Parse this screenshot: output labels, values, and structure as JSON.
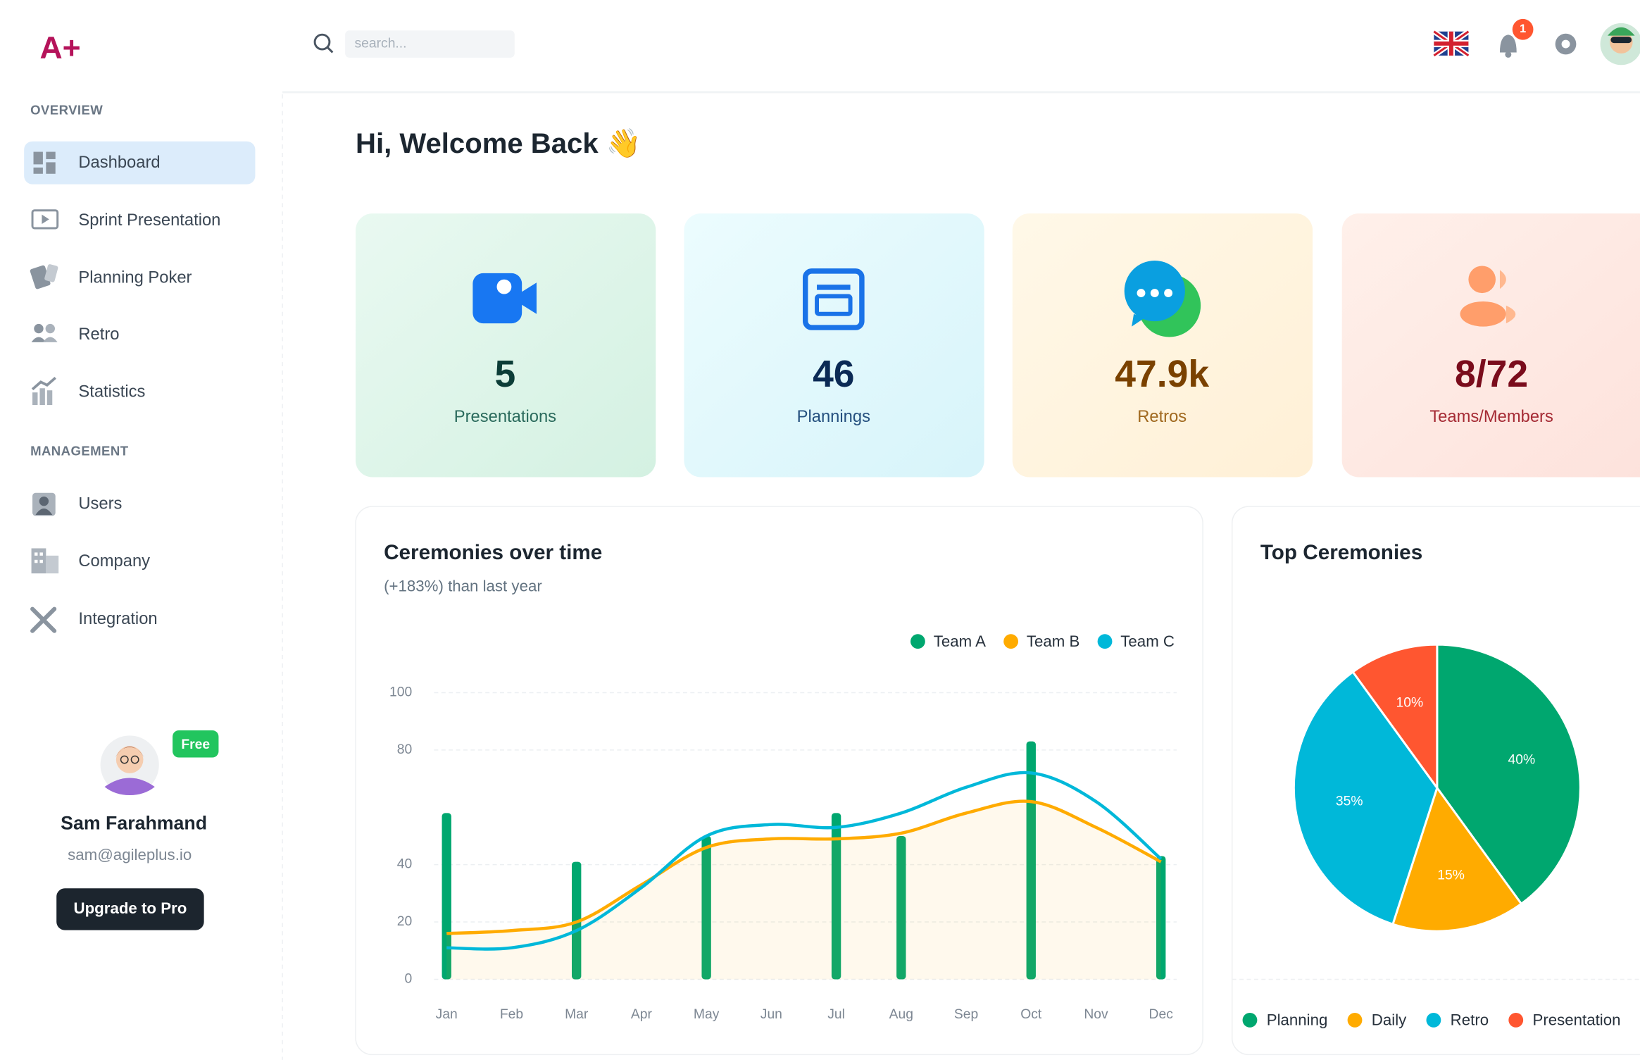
{
  "logo": "A+",
  "header": {
    "search_placeholder": "search...",
    "notification_count": "1"
  },
  "sidebar": {
    "sections": [
      {
        "title": "OVERVIEW",
        "items": [
          "Dashboard",
          "Sprint Presentation",
          "Planning Poker",
          "Retro",
          "Statistics"
        ]
      },
      {
        "title": "MANAGEMENT",
        "items": [
          "Users",
          "Company",
          "Integration"
        ]
      }
    ],
    "user": {
      "badge": "Free",
      "name": "Sam Farahmand",
      "email": "sam@agileplus.io",
      "button": "Upgrade to Pro"
    }
  },
  "greeting": "Hi, Welcome Back 👋",
  "cards": [
    {
      "value": "5",
      "label": "Presentations"
    },
    {
      "value": "46",
      "label": "Plannings"
    },
    {
      "value": "47.9k",
      "label": "Retros"
    },
    {
      "value": "8/72",
      "label": "Teams/Members"
    }
  ],
  "chart_data": [
    {
      "type": "combo",
      "title": "Ceremonies over time",
      "subtitle": "(+183%) than last year",
      "categories": [
        "Jan",
        "Feb",
        "Mar",
        "Apr",
        "May",
        "Jun",
        "Jul",
        "Aug",
        "Sep",
        "Oct",
        "Nov",
        "Dec"
      ],
      "ylim": [
        0,
        100
      ],
      "yticks": [
        0,
        20,
        40,
        80,
        100
      ],
      "grid": true,
      "legend": "top-right",
      "series": [
        {
          "name": "Team A",
          "type": "bar",
          "color": "#00a76f",
          "values": [
            58,
            null,
            41,
            null,
            50,
            null,
            58,
            50,
            null,
            83,
            null,
            43
          ]
        },
        {
          "name": "Team B",
          "type": "line",
          "area": true,
          "color": "#ffab00",
          "values": [
            16,
            17,
            20,
            33,
            46,
            49,
            49,
            51,
            58,
            62,
            53,
            41
          ]
        },
        {
          "name": "Team C",
          "type": "line",
          "color": "#00b8d9",
          "values": [
            11,
            11,
            17,
            32,
            50,
            54,
            53,
            58,
            67,
            72,
            62,
            42
          ]
        }
      ]
    },
    {
      "type": "pie",
      "title": "Top Ceremonies",
      "categories": [
        "Planning",
        "Daily",
        "Retro",
        "Presentation"
      ],
      "values": [
        40,
        15,
        35,
        10
      ],
      "value_labels": [
        "40%",
        "15%",
        "35%",
        "10%"
      ],
      "colors": [
        "#00a76f",
        "#ffab00",
        "#00b8d9",
        "#ff5630"
      ],
      "legend": "bottom"
    }
  ]
}
